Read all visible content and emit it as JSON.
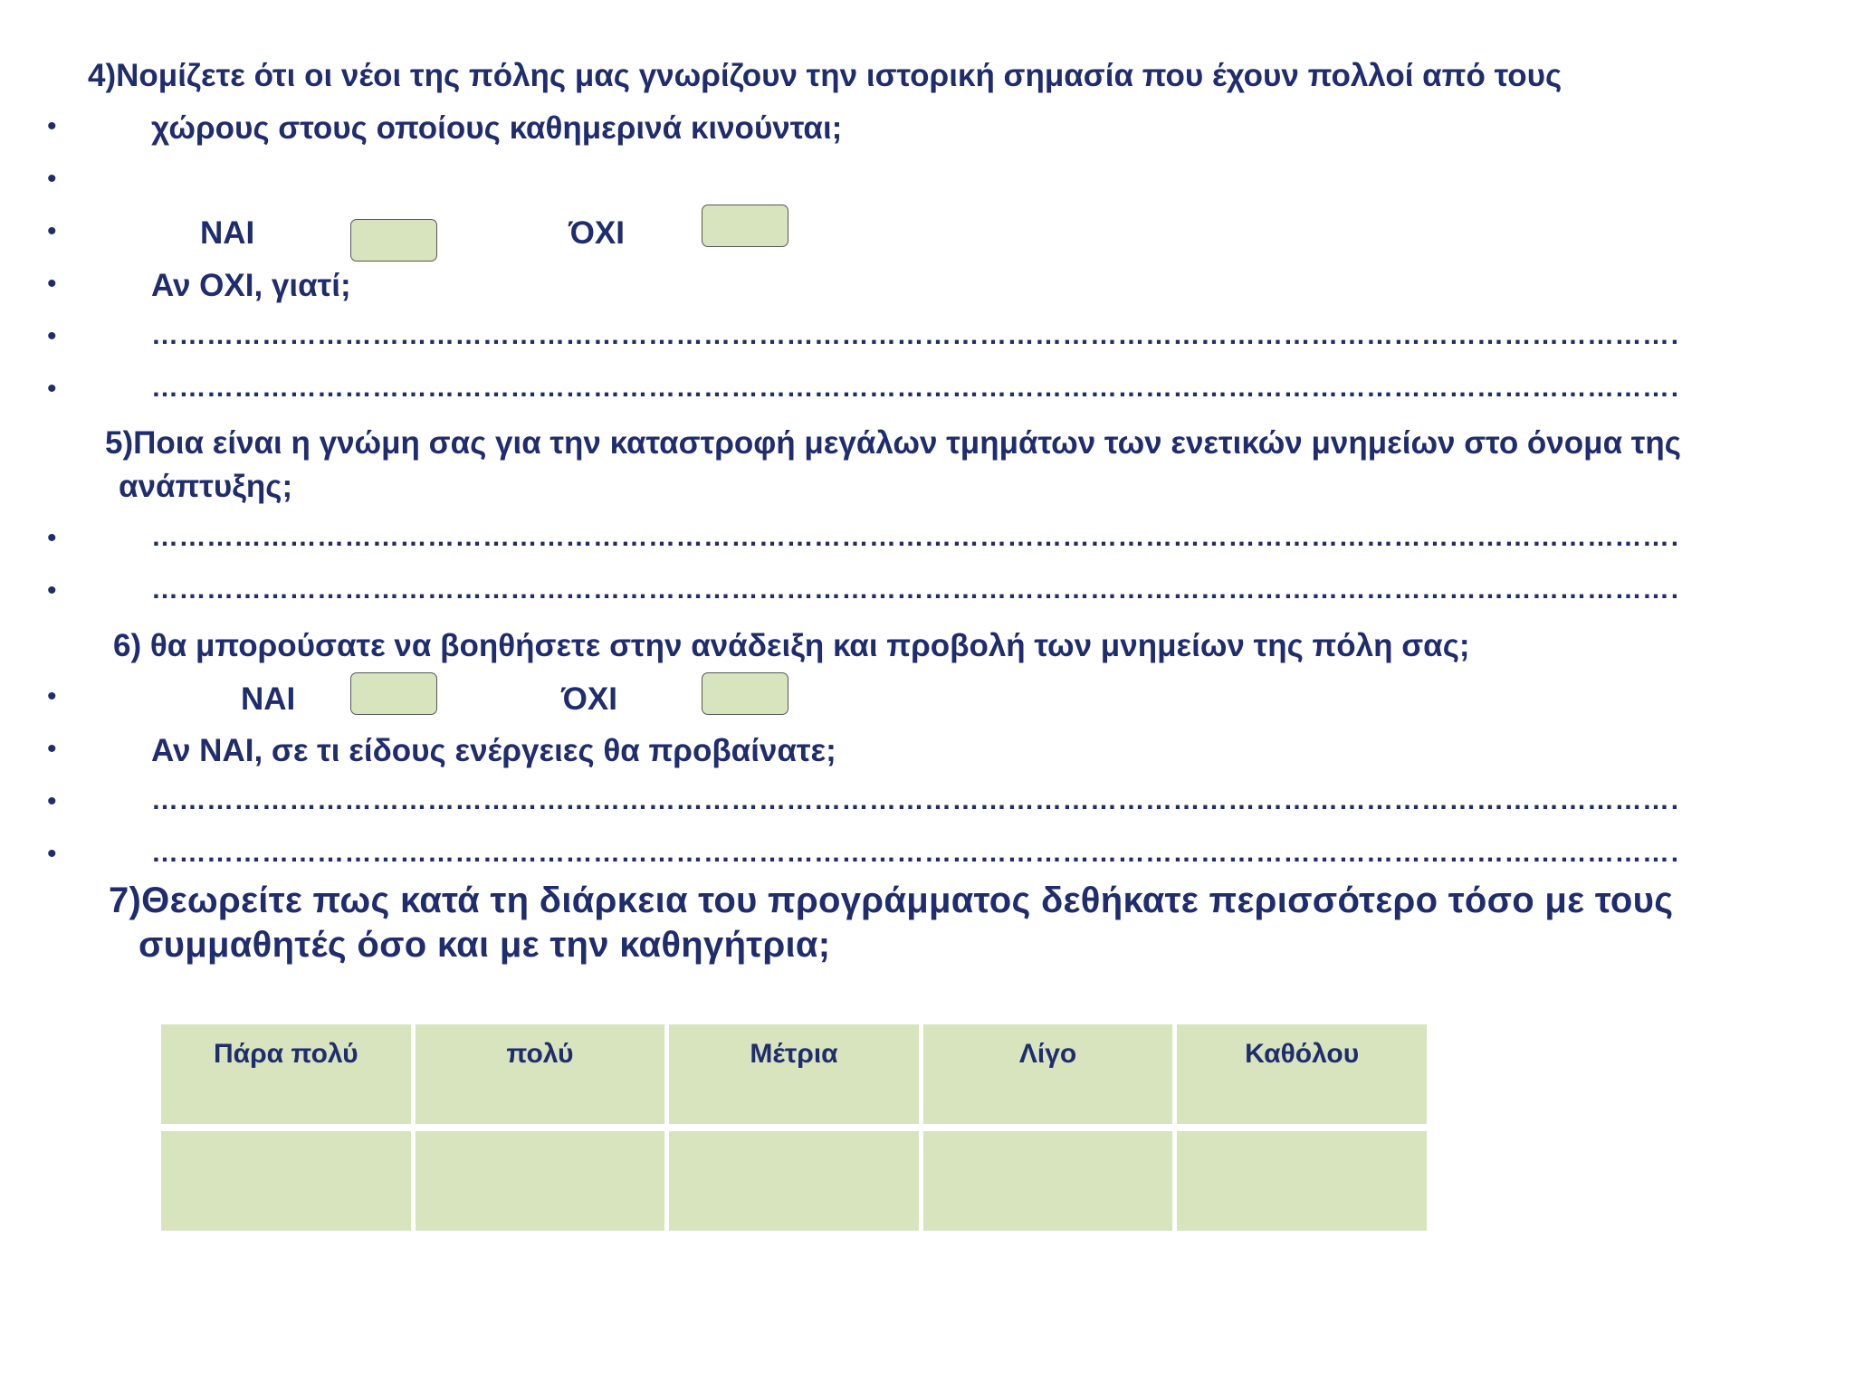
{
  "q4": {
    "line1": "4)Νομίζετε ότι οι νέοι της πόλης μας γνωρίζουν την ιστορική σημασία που έχουν πολλοί από τους",
    "line2": "χώρους στους οποίους καθημερινά κινούνται;",
    "yes": "ΝΑΙ",
    "no": "ΌΧΙ",
    "if_no": "Αν ΟΧΙ, γιατί;"
  },
  "q5": {
    "line1": "5)Ποια είναι η γνώμη σας για την καταστροφή μεγάλων τμημάτων των ενετικών μνημείων στο όνομα της",
    "line2": "ανάπτυξης;"
  },
  "q6": {
    "line1": "6) θα μπορούσατε να βοηθήσετε στην ανάδειξη και προβολή των μνημείων της πόλη σας;",
    "yes": "ΝΑΙ",
    "no": "ΌΧΙ",
    "if_yes": "Αν ΝΑΙ, σε τι είδους ενέργειες θα προβαίνατε;"
  },
  "q7": {
    "line1": "7)Θεωρείτε πως κατά τη διάρκεια του προγράμματος δεθήκατε περισσότερο τόσο με τους",
    "line2": "συμμαθητές όσο και με την καθηγήτρια;"
  },
  "bullet": "•",
  "dotted_line": "……………………………………………………………………………………………………………………………………………………………",
  "rating_scale": [
    "Πάρα πολύ",
    "πολύ",
    "Μέτρια",
    "Λίγο",
    "Καθόλου"
  ]
}
